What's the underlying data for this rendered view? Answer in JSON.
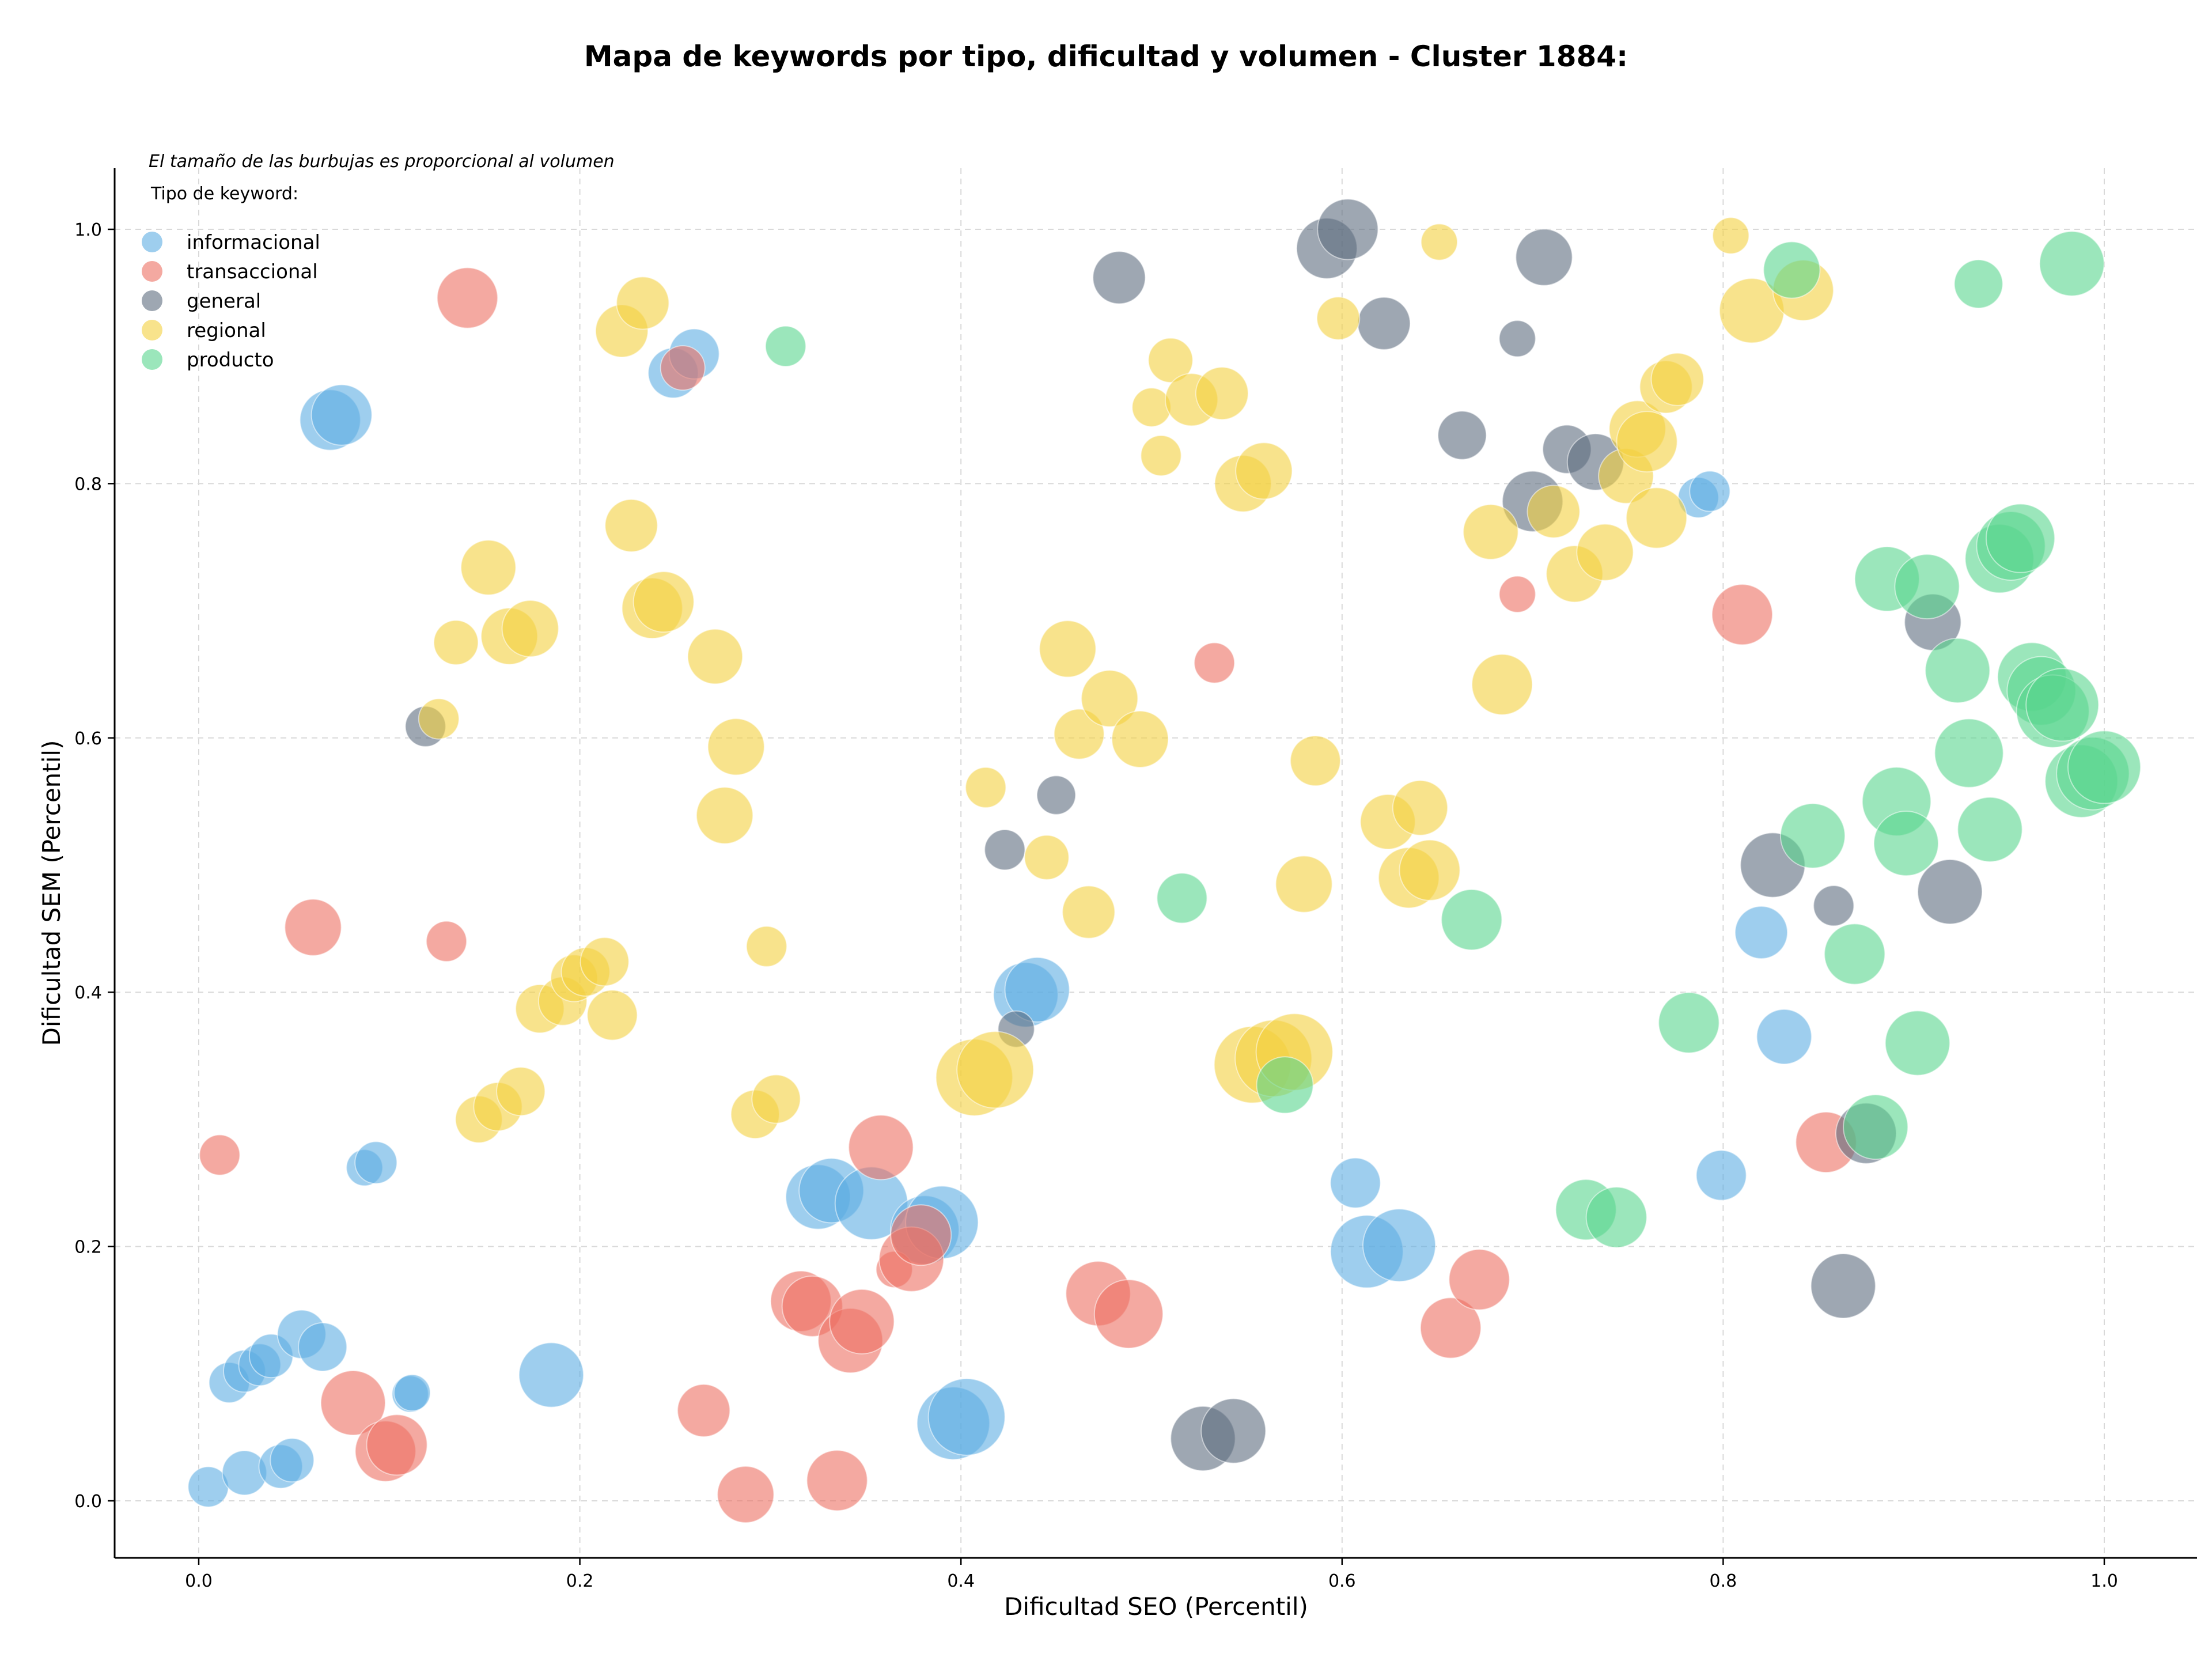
{
  "chart_data": {
    "type": "scatter",
    "title": "Mapa de keywords por tipo, dificultad y volumen - Cluster 1884:",
    "xlabel": "Dificultad SEO (Percentil)",
    "ylabel": "Dificultad SEM (Percentil)",
    "xlim": [
      -0.044,
      1.05
    ],
    "ylim": [
      -0.044,
      1.05
    ],
    "xticks": [
      0.0,
      0.2,
      0.4,
      0.6,
      0.8,
      1.0
    ],
    "yticks": [
      0.0,
      0.2,
      0.4,
      0.6,
      0.8,
      1.0
    ],
    "xtick_labels": [
      "0.0",
      "0.2",
      "0.4",
      "0.6",
      "0.8",
      "1.0"
    ],
    "ytick_labels": [
      "0.0",
      "0.2",
      "0.4",
      "0.6",
      "0.8",
      "1.0"
    ],
    "grid": true,
    "annotation": "El tamaño de las burbujas es proporcional al volumen",
    "legend_title": "Tipo de keyword:",
    "legend_position": "top-left",
    "series": [
      {
        "name": "informacional",
        "color": "#5DADE2",
        "points": [
          {
            "x": 0.005,
            "y": 0.011,
            "size": 0.3
          },
          {
            "x": 0.024,
            "y": 0.022,
            "size": 0.35
          },
          {
            "x": 0.016,
            "y": 0.093,
            "size": 0.3
          },
          {
            "x": 0.024,
            "y": 0.102,
            "size": 0.32
          },
          {
            "x": 0.032,
            "y": 0.107,
            "size": 0.32
          },
          {
            "x": 0.038,
            "y": 0.114,
            "size": 0.34
          },
          {
            "x": 0.043,
            "y": 0.027,
            "size": 0.34
          },
          {
            "x": 0.049,
            "y": 0.032,
            "size": 0.34
          },
          {
            "x": 0.054,
            "y": 0.131,
            "size": 0.4
          },
          {
            "x": 0.065,
            "y": 0.121,
            "size": 0.4
          },
          {
            "x": 0.069,
            "y": 0.85,
            "size": 0.55
          },
          {
            "x": 0.075,
            "y": 0.854,
            "size": 0.55
          },
          {
            "x": 0.087,
            "y": 0.262,
            "size": 0.25
          },
          {
            "x": 0.093,
            "y": 0.266,
            "size": 0.32
          },
          {
            "x": 0.111,
            "y": 0.084,
            "size": 0.25
          },
          {
            "x": 0.112,
            "y": 0.085,
            "size": 0.25
          },
          {
            "x": 0.185,
            "y": 0.099,
            "size": 0.6
          },
          {
            "x": 0.249,
            "y": 0.887,
            "size": 0.42
          },
          {
            "x": 0.26,
            "y": 0.902,
            "size": 0.42
          },
          {
            "x": 0.325,
            "y": 0.239,
            "size": 0.6
          },
          {
            "x": 0.332,
            "y": 0.244,
            "size": 0.6
          },
          {
            "x": 0.353,
            "y": 0.234,
            "size": 0.7
          },
          {
            "x": 0.381,
            "y": 0.213,
            "size": 0.65
          },
          {
            "x": 0.39,
            "y": 0.219,
            "size": 0.7
          },
          {
            "x": 0.396,
            "y": 0.061,
            "size": 0.7
          },
          {
            "x": 0.403,
            "y": 0.066,
            "size": 0.75
          },
          {
            "x": 0.434,
            "y": 0.398,
            "size": 0.6
          },
          {
            "x": 0.44,
            "y": 0.402,
            "size": 0.6
          },
          {
            "x": 0.607,
            "y": 0.25,
            "size": 0.42
          },
          {
            "x": 0.613,
            "y": 0.196,
            "size": 0.7
          },
          {
            "x": 0.63,
            "y": 0.201,
            "size": 0.7
          },
          {
            "x": 0.787,
            "y": 0.789,
            "size": 0.3
          },
          {
            "x": 0.793,
            "y": 0.794,
            "size": 0.3
          },
          {
            "x": 0.799,
            "y": 0.256,
            "size": 0.42
          },
          {
            "x": 0.82,
            "y": 0.447,
            "size": 0.45
          },
          {
            "x": 0.832,
            "y": 0.365,
            "size": 0.48
          }
        ]
      },
      {
        "name": "transaccional",
        "color": "#EC7063",
        "points": [
          {
            "x": 0.011,
            "y": 0.272,
            "size": 0.3
          },
          {
            "x": 0.06,
            "y": 0.451,
            "size": 0.5
          },
          {
            "x": 0.081,
            "y": 0.077,
            "size": 0.6
          },
          {
            "x": 0.098,
            "y": 0.039,
            "size": 0.55
          },
          {
            "x": 0.104,
            "y": 0.044,
            "size": 0.55
          },
          {
            "x": 0.13,
            "y": 0.44,
            "size": 0.3
          },
          {
            "x": 0.141,
            "y": 0.946,
            "size": 0.55
          },
          {
            "x": 0.254,
            "y": 0.891,
            "size": 0.35
          },
          {
            "x": 0.265,
            "y": 0.071,
            "size": 0.45
          },
          {
            "x": 0.287,
            "y": 0.005,
            "size": 0.5
          },
          {
            "x": 0.316,
            "y": 0.157,
            "size": 0.55
          },
          {
            "x": 0.322,
            "y": 0.153,
            "size": 0.55
          },
          {
            "x": 0.335,
            "y": 0.016,
            "size": 0.55
          },
          {
            "x": 0.342,
            "y": 0.126,
            "size": 0.6
          },
          {
            "x": 0.348,
            "y": 0.141,
            "size": 0.6
          },
          {
            "x": 0.358,
            "y": 0.278,
            "size": 0.6
          },
          {
            "x": 0.365,
            "y": 0.182,
            "size": 0.25
          },
          {
            "x": 0.374,
            "y": 0.19,
            "size": 0.6
          },
          {
            "x": 0.379,
            "y": 0.209,
            "size": 0.55
          },
          {
            "x": 0.472,
            "y": 0.163,
            "size": 0.6
          },
          {
            "x": 0.488,
            "y": 0.147,
            "size": 0.65
          },
          {
            "x": 0.533,
            "y": 0.659,
            "size": 0.3
          },
          {
            "x": 0.657,
            "y": 0.136,
            "size": 0.55
          },
          {
            "x": 0.672,
            "y": 0.174,
            "size": 0.55
          },
          {
            "x": 0.692,
            "y": 0.713,
            "size": 0.25
          },
          {
            "x": 0.81,
            "y": 0.697,
            "size": 0.55
          },
          {
            "x": 0.854,
            "y": 0.282,
            "size": 0.55
          }
        ]
      },
      {
        "name": "general",
        "color": "#5D6D7E",
        "points": [
          {
            "x": 0.119,
            "y": 0.609,
            "size": 0.3
          },
          {
            "x": 0.423,
            "y": 0.512,
            "size": 0.3
          },
          {
            "x": 0.429,
            "y": 0.371,
            "size": 0.25
          },
          {
            "x": 0.45,
            "y": 0.555,
            "size": 0.28
          },
          {
            "x": 0.483,
            "y": 0.962,
            "size": 0.45
          },
          {
            "x": 0.527,
            "y": 0.049,
            "size": 0.6
          },
          {
            "x": 0.543,
            "y": 0.055,
            "size": 0.6
          },
          {
            "x": 0.592,
            "y": 0.985,
            "size": 0.55
          },
          {
            "x": 0.603,
            "y": 1.0,
            "size": 0.55
          },
          {
            "x": 0.622,
            "y": 0.926,
            "size": 0.45
          },
          {
            "x": 0.663,
            "y": 0.838,
            "size": 0.4
          },
          {
            "x": 0.692,
            "y": 0.914,
            "size": 0.25
          },
          {
            "x": 0.7,
            "y": 0.786,
            "size": 0.55
          },
          {
            "x": 0.706,
            "y": 0.978,
            "size": 0.5
          },
          {
            "x": 0.718,
            "y": 0.827,
            "size": 0.4
          },
          {
            "x": 0.733,
            "y": 0.817,
            "size": 0.5
          },
          {
            "x": 0.826,
            "y": 0.5,
            "size": 0.6
          },
          {
            "x": 0.858,
            "y": 0.468,
            "size": 0.3
          },
          {
            "x": 0.863,
            "y": 0.169,
            "size": 0.6
          },
          {
            "x": 0.875,
            "y": 0.289,
            "size": 0.55
          },
          {
            "x": 0.91,
            "y": 0.691,
            "size": 0.5
          },
          {
            "x": 0.919,
            "y": 0.479,
            "size": 0.6
          }
        ]
      },
      {
        "name": "regional",
        "color": "#F4D03F",
        "points": [
          {
            "x": 0.126,
            "y": 0.615,
            "size": 0.3
          },
          {
            "x": 0.135,
            "y": 0.675,
            "size": 0.35
          },
          {
            "x": 0.147,
            "y": 0.3,
            "size": 0.38
          },
          {
            "x": 0.152,
            "y": 0.734,
            "size": 0.48
          },
          {
            "x": 0.157,
            "y": 0.31,
            "size": 0.4
          },
          {
            "x": 0.163,
            "y": 0.68,
            "size": 0.5
          },
          {
            "x": 0.169,
            "y": 0.322,
            "size": 0.4
          },
          {
            "x": 0.174,
            "y": 0.686,
            "size": 0.5
          },
          {
            "x": 0.179,
            "y": 0.387,
            "size": 0.4
          },
          {
            "x": 0.191,
            "y": 0.393,
            "size": 0.4
          },
          {
            "x": 0.197,
            "y": 0.411,
            "size": 0.38
          },
          {
            "x": 0.203,
            "y": 0.416,
            "size": 0.4
          },
          {
            "x": 0.213,
            "y": 0.424,
            "size": 0.4
          },
          {
            "x": 0.217,
            "y": 0.382,
            "size": 0.42
          },
          {
            "x": 0.222,
            "y": 0.92,
            "size": 0.45
          },
          {
            "x": 0.227,
            "y": 0.767,
            "size": 0.45
          },
          {
            "x": 0.233,
            "y": 0.942,
            "size": 0.45
          },
          {
            "x": 0.238,
            "y": 0.702,
            "size": 0.55
          },
          {
            "x": 0.244,
            "y": 0.707,
            "size": 0.55
          },
          {
            "x": 0.271,
            "y": 0.664,
            "size": 0.48
          },
          {
            "x": 0.276,
            "y": 0.539,
            "size": 0.5
          },
          {
            "x": 0.282,
            "y": 0.593,
            "size": 0.5
          },
          {
            "x": 0.292,
            "y": 0.304,
            "size": 0.4
          },
          {
            "x": 0.298,
            "y": 0.436,
            "size": 0.3
          },
          {
            "x": 0.303,
            "y": 0.316,
            "size": 0.4
          },
          {
            "x": 0.407,
            "y": 0.333,
            "size": 0.75
          },
          {
            "x": 0.418,
            "y": 0.339,
            "size": 0.75
          },
          {
            "x": 0.413,
            "y": 0.561,
            "size": 0.3
          },
          {
            "x": 0.445,
            "y": 0.506,
            "size": 0.35
          },
          {
            "x": 0.456,
            "y": 0.67,
            "size": 0.5
          },
          {
            "x": 0.462,
            "y": 0.603,
            "size": 0.42
          },
          {
            "x": 0.467,
            "y": 0.463,
            "size": 0.45
          },
          {
            "x": 0.478,
            "y": 0.631,
            "size": 0.5
          },
          {
            "x": 0.494,
            "y": 0.599,
            "size": 0.5
          },
          {
            "x": 0.5,
            "y": 0.86,
            "size": 0.28
          },
          {
            "x": 0.505,
            "y": 0.822,
            "size": 0.3
          },
          {
            "x": 0.51,
            "y": 0.897,
            "size": 0.35
          },
          {
            "x": 0.521,
            "y": 0.866,
            "size": 0.45
          },
          {
            "x": 0.537,
            "y": 0.871,
            "size": 0.45
          },
          {
            "x": 0.548,
            "y": 0.8,
            "size": 0.5
          },
          {
            "x": 0.553,
            "y": 0.343,
            "size": 0.75
          },
          {
            "x": 0.559,
            "y": 0.81,
            "size": 0.5
          },
          {
            "x": 0.564,
            "y": 0.348,
            "size": 0.75
          },
          {
            "x": 0.575,
            "y": 0.353,
            "size": 0.75
          },
          {
            "x": 0.58,
            "y": 0.485,
            "size": 0.5
          },
          {
            "x": 0.586,
            "y": 0.582,
            "size": 0.42
          },
          {
            "x": 0.598,
            "y": 0.93,
            "size": 0.33
          },
          {
            "x": 0.624,
            "y": 0.534,
            "size": 0.48
          },
          {
            "x": 0.635,
            "y": 0.49,
            "size": 0.55
          },
          {
            "x": 0.641,
            "y": 0.545,
            "size": 0.48
          },
          {
            "x": 0.646,
            "y": 0.496,
            "size": 0.55
          },
          {
            "x": 0.651,
            "y": 0.99,
            "size": 0.25
          },
          {
            "x": 0.678,
            "y": 0.762,
            "size": 0.48
          },
          {
            "x": 0.684,
            "y": 0.642,
            "size": 0.55
          },
          {
            "x": 0.711,
            "y": 0.778,
            "size": 0.45
          },
          {
            "x": 0.722,
            "y": 0.729,
            "size": 0.5
          },
          {
            "x": 0.738,
            "y": 0.746,
            "size": 0.5
          },
          {
            "x": 0.749,
            "y": 0.806,
            "size": 0.48
          },
          {
            "x": 0.755,
            "y": 0.843,
            "size": 0.5
          },
          {
            "x": 0.76,
            "y": 0.833,
            "size": 0.55
          },
          {
            "x": 0.765,
            "y": 0.773,
            "size": 0.55
          },
          {
            "x": 0.77,
            "y": 0.876,
            "size": 0.45
          },
          {
            "x": 0.776,
            "y": 0.882,
            "size": 0.45
          },
          {
            "x": 0.804,
            "y": 0.995,
            "size": 0.25
          },
          {
            "x": 0.815,
            "y": 0.936,
            "size": 0.6
          },
          {
            "x": 0.842,
            "y": 0.952,
            "size": 0.55
          }
        ]
      },
      {
        "name": "producto",
        "color": "#58D68D",
        "points": [
          {
            "x": 0.308,
            "y": 0.908,
            "size": 0.3
          },
          {
            "x": 0.516,
            "y": 0.474,
            "size": 0.42
          },
          {
            "x": 0.57,
            "y": 0.327,
            "size": 0.5
          },
          {
            "x": 0.668,
            "y": 0.457,
            "size": 0.55
          },
          {
            "x": 0.728,
            "y": 0.229,
            "size": 0.55
          },
          {
            "x": 0.744,
            "y": 0.223,
            "size": 0.55
          },
          {
            "x": 0.782,
            "y": 0.376,
            "size": 0.55
          },
          {
            "x": 0.836,
            "y": 0.968,
            "size": 0.5
          },
          {
            "x": 0.847,
            "y": 0.523,
            "size": 0.6
          },
          {
            "x": 0.869,
            "y": 0.43,
            "size": 0.55
          },
          {
            "x": 0.88,
            "y": 0.294,
            "size": 0.6
          },
          {
            "x": 0.886,
            "y": 0.725,
            "size": 0.6
          },
          {
            "x": 0.891,
            "y": 0.55,
            "size": 0.65
          },
          {
            "x": 0.896,
            "y": 0.517,
            "size": 0.6
          },
          {
            "x": 0.902,
            "y": 0.36,
            "size": 0.6
          },
          {
            "x": 0.907,
            "y": 0.719,
            "size": 0.6
          },
          {
            "x": 0.923,
            "y": 0.653,
            "size": 0.6
          },
          {
            "x": 0.929,
            "y": 0.588,
            "size": 0.65
          },
          {
            "x": 0.934,
            "y": 0.957,
            "size": 0.4
          },
          {
            "x": 0.94,
            "y": 0.528,
            "size": 0.6
          },
          {
            "x": 0.945,
            "y": 0.741,
            "size": 0.65
          },
          {
            "x": 0.951,
            "y": 0.751,
            "size": 0.65
          },
          {
            "x": 0.956,
            "y": 0.757,
            "size": 0.65
          },
          {
            "x": 0.962,
            "y": 0.648,
            "size": 0.65
          },
          {
            "x": 0.967,
            "y": 0.637,
            "size": 0.65
          },
          {
            "x": 0.973,
            "y": 0.621,
            "size": 0.7
          },
          {
            "x": 0.978,
            "y": 0.626,
            "size": 0.7
          },
          {
            "x": 0.983,
            "y": 0.973,
            "size": 0.6
          },
          {
            "x": 0.988,
            "y": 0.566,
            "size": 0.7
          },
          {
            "x": 0.994,
            "y": 0.572,
            "size": 0.7
          },
          {
            "x": 1.0,
            "y": 0.577,
            "size": 0.7
          }
        ]
      }
    ]
  }
}
